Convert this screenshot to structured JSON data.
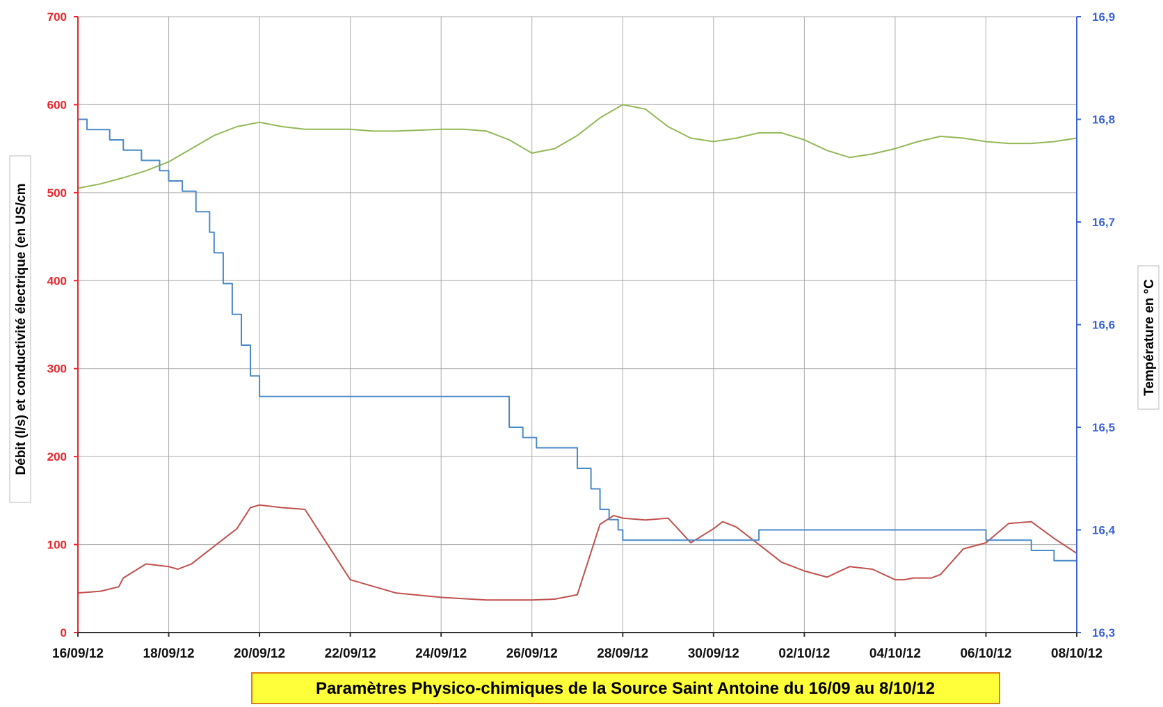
{
  "chart_data": {
    "type": "line",
    "title": "Paramètres Physico-chimiques de la Source Saint Antoine du 16/09 au 8/10/12",
    "ylabel_left": "Débit (l/s) et conductivité électrique (en US/cm",
    "ylabel_right": "Température en °C",
    "xlabel": "",
    "x_ticks": [
      "16/09/12",
      "18/09/12",
      "20/09/12",
      "22/09/12",
      "24/09/12",
      "26/09/12",
      "28/09/12",
      "30/09/12",
      "02/10/12",
      "04/10/12",
      "06/10/12",
      "08/10/12"
    ],
    "x_unit": "days since 16/09/12",
    "xlim": [
      0,
      22
    ],
    "y_left_ticks": [
      "0",
      "100",
      "200",
      "300",
      "400",
      "500",
      "600",
      "700"
    ],
    "y_left_lim": [
      0,
      700
    ],
    "y_right_ticks": [
      "16,3",
      "16,4",
      "16,5",
      "16,6",
      "16,7",
      "16,8",
      "16,9"
    ],
    "y_right_lim": [
      16.3,
      16.9
    ],
    "grid": true,
    "colors": {
      "left_axis": "#e8242a",
      "right_axis": "#3a62d6",
      "title_bg": "#ffff3a",
      "title_border": "#e07b1a"
    },
    "series": [
      {
        "axis": "left",
        "color": "#93b857",
        "x": [
          0,
          0.5,
          1,
          1.5,
          2,
          2.5,
          3,
          3.5,
          4,
          4.5,
          5,
          5.5,
          6,
          6.5,
          7,
          7.5,
          8,
          8.5,
          9,
          9.5,
          10,
          10.5,
          11,
          11.5,
          12,
          12.5,
          13,
          13.5,
          14,
          14.5,
          15,
          15.5,
          16,
          16.5,
          17,
          17.5,
          18,
          18.5,
          19,
          19.5,
          20,
          20.5,
          21,
          21.5,
          22
        ],
        "y": [
          505,
          510,
          517,
          525,
          535,
          550,
          565,
          575,
          580,
          575,
          572,
          572,
          572,
          570,
          570,
          571,
          572,
          572,
          570,
          560,
          545,
          550,
          565,
          585,
          600,
          595,
          575,
          562,
          558,
          562,
          568,
          568,
          560,
          548,
          540,
          544,
          550,
          558,
          564,
          562,
          558,
          556,
          556,
          558,
          562
        ]
      },
      {
        "axis": "left",
        "color": "#c0504d",
        "x": [
          0,
          0.5,
          0.9,
          1,
          1.5,
          2,
          2.2,
          2.5,
          3,
          3.5,
          3.8,
          4,
          4.5,
          5,
          6,
          7,
          8,
          9,
          9.7,
          10,
          10.5,
          11,
          11.5,
          11.8,
          12,
          12.5,
          13,
          13.5,
          14,
          14.2,
          14.5,
          15,
          15.5,
          16,
          16.5,
          17,
          17.5,
          18,
          18.2,
          18.4,
          18.6,
          18.8,
          19,
          19.5,
          20,
          20.5,
          21,
          21.5,
          22
        ],
        "y": [
          45,
          47,
          52,
          62,
          78,
          75,
          72,
          78,
          98,
          118,
          142,
          145,
          142,
          140,
          60,
          45,
          40,
          37,
          37,
          37,
          38,
          43,
          123,
          133,
          130,
          128,
          130,
          102,
          118,
          126,
          120,
          100,
          80,
          70,
          63,
          75,
          72,
          60,
          60,
          62,
          62,
          62,
          66,
          95,
          102,
          124,
          126,
          107,
          90
        ]
      },
      {
        "axis": "right",
        "color": "#4a89c7",
        "step": true,
        "x": [
          0,
          0.2,
          0.4,
          0.7,
          1,
          1.4,
          1.8,
          2,
          2.3,
          2.6,
          2.9,
          3,
          3.2,
          3.4,
          3.6,
          3.8,
          4,
          8.7,
          9.5,
          9.8,
          10.1,
          10.5,
          11,
          11.3,
          11.5,
          11.7,
          11.9,
          12,
          12.5,
          13,
          14,
          15,
          16,
          17,
          18,
          19,
          20,
          21,
          21.5,
          22
        ],
        "y": [
          16.8,
          16.79,
          16.79,
          16.78,
          16.77,
          16.76,
          16.75,
          16.74,
          16.73,
          16.71,
          16.69,
          16.67,
          16.64,
          16.61,
          16.58,
          16.55,
          16.53,
          16.53,
          16.5,
          16.49,
          16.48,
          16.48,
          16.46,
          16.44,
          16.42,
          16.41,
          16.4,
          16.39,
          16.39,
          16.39,
          16.39,
          16.4,
          16.4,
          16.4,
          16.4,
          16.4,
          16.39,
          16.38,
          16.37,
          16.37
        ]
      }
    ]
  }
}
